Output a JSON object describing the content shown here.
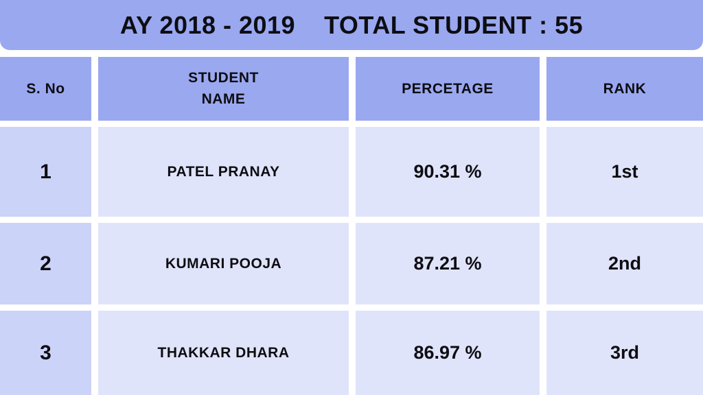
{
  "header": {
    "title_left": "AY 2018 - 2019",
    "title_right": "TOTAL STUDENT : 55"
  },
  "table": {
    "columns": {
      "sno": "S. No",
      "student_name": "STUDENT\nNAME",
      "percentage": "PERCETAGE",
      "rank": "RANK"
    },
    "rows": [
      {
        "sno": "1",
        "name": "PATEL PRANAY",
        "percentage": "90.31 %",
        "rank": "1st"
      },
      {
        "sno": "2",
        "name": "KUMARI POOJA",
        "percentage": "87.21 %",
        "rank": "2nd"
      },
      {
        "sno": "3",
        "name": "THAKKAR DHARA",
        "percentage": "86.97 %",
        "rank": "3rd"
      }
    ]
  },
  "colors": {
    "header_blue": "#9aa8f0",
    "sno_column_lavender": "#ccd3f8",
    "data_cell_lavender": "#e0e4fa",
    "text": "#0d0d12",
    "background": "#ffffff"
  },
  "chart_data": {
    "type": "table",
    "title": "AY 2018 - 2019   TOTAL STUDENT : 55",
    "academic_year": "2018 - 2019",
    "total_students": 55,
    "columns": [
      "S. No",
      "STUDENT NAME",
      "PERCETAGE",
      "RANK"
    ],
    "rows": [
      [
        1,
        "PATEL PRANAY",
        90.31,
        "1st"
      ],
      [
        2,
        "KUMARI POOJA",
        87.21,
        "2nd"
      ],
      [
        3,
        "THAKKAR DHARA",
        86.97,
        "3rd"
      ]
    ]
  }
}
